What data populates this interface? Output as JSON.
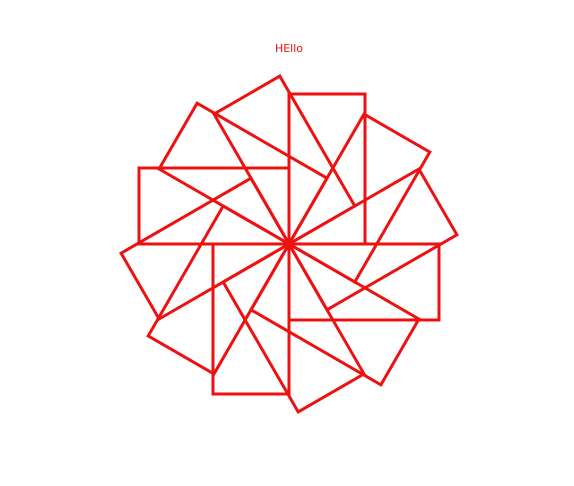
{
  "greeting": "HEllo",
  "colors": {
    "background": "#ffffff",
    "stroke": "#ee1111",
    "text": "#ee1111"
  },
  "rosette": {
    "shape": "rectangle",
    "count": 12,
    "rotation_step_degrees": 30
  }
}
